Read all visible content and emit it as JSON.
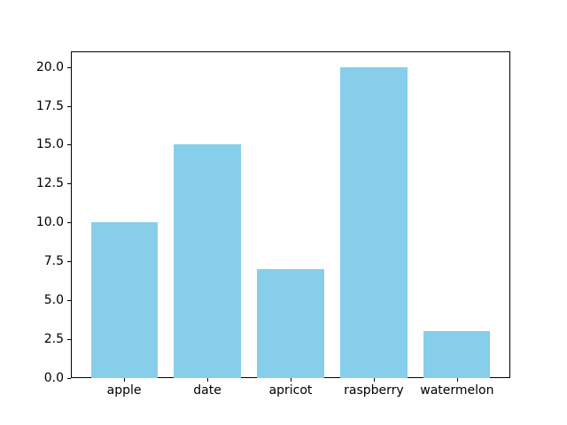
{
  "figure": {
    "background": "#ffffff",
    "axes_edge_color": "#000000",
    "tick_color": "#000000",
    "label_color": "#000000"
  },
  "chart_data": {
    "type": "bar",
    "categories": [
      "apple",
      "date",
      "apricot",
      "raspberry",
      "watermelon"
    ],
    "values": [
      10,
      15,
      7,
      20,
      3
    ],
    "bar_color": "#87CEEB",
    "bar_width": 0.8,
    "xlim": [
      -0.64,
      4.64
    ],
    "ylim": [
      0,
      21
    ],
    "yticks": [
      "0.0",
      "2.5",
      "5.0",
      "7.5",
      "10.0",
      "12.5",
      "15.0",
      "17.5",
      "20.0"
    ],
    "grid": false,
    "legend_position": "none"
  }
}
